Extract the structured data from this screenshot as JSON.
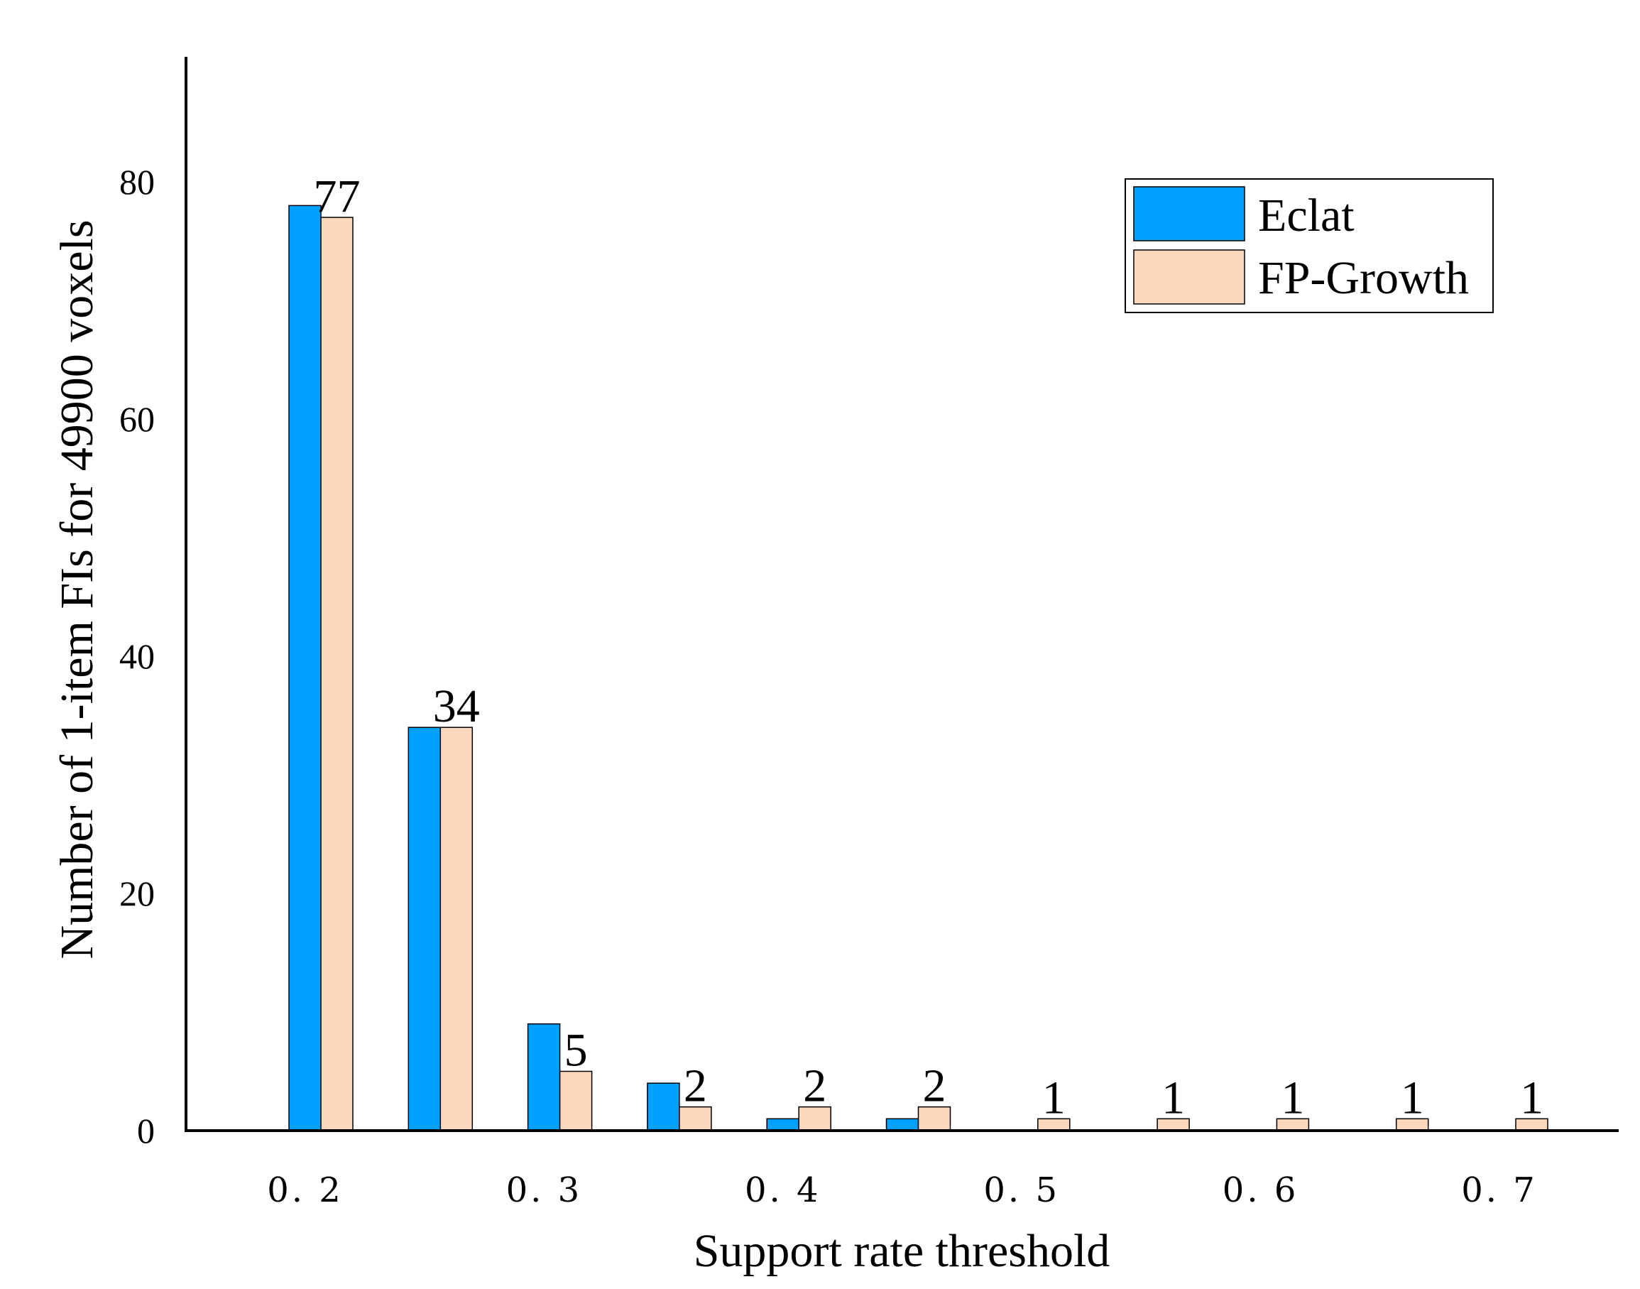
{
  "chart_data": {
    "type": "bar",
    "title": "",
    "xlabel": "Support rate threshold",
    "ylabel": "Number of 1-item FIs for 49900 voxels",
    "ylim": [
      0,
      90
    ],
    "yticks": [
      "0",
      "20",
      "40",
      "60",
      "80"
    ],
    "xtick_labels": [
      "0. 2",
      "0. 3",
      "0. 4",
      "0. 5",
      "0. 6",
      "0. 7"
    ],
    "legend_position": "top-right",
    "grid": false,
    "series": [
      {
        "name": "Eclat",
        "color": "#00A0FF",
        "values": [
          78,
          34,
          9,
          4,
          1,
          1,
          0,
          0,
          0,
          0,
          0
        ]
      },
      {
        "name": "FP-Growth",
        "color": "#F9D8BB",
        "values": [
          77,
          34,
          5,
          2,
          2,
          2,
          1,
          1,
          1,
          1,
          1
        ]
      }
    ],
    "data_labels": [
      "77",
      "34",
      "5",
      "2",
      "2",
      "2",
      "1",
      "1",
      "1",
      "1",
      "1"
    ]
  }
}
